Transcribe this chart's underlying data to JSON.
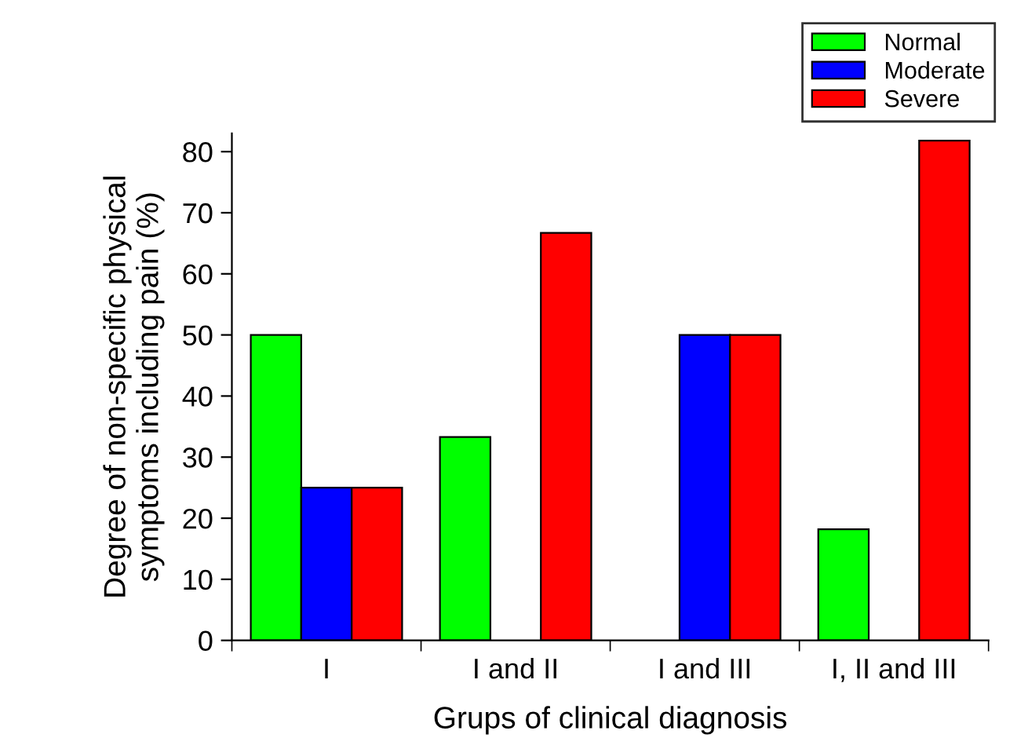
{
  "chart_data": {
    "type": "bar",
    "xlabel": "Grups of clinical diagnosis",
    "ylabel": "Degree of non-specific physical\nsymptoms including pain (%)",
    "categories": [
      "I",
      "I and II",
      "I and III",
      "I, II and III"
    ],
    "series": [
      {
        "name": "Normal",
        "color": "#00ff00",
        "values": [
          50,
          33.3,
          null,
          18.2
        ]
      },
      {
        "name": "Moderate",
        "color": "#0000ff",
        "values": [
          25,
          null,
          50,
          null
        ]
      },
      {
        "name": "Severe",
        "color": "#ff0000",
        "values": [
          25,
          66.7,
          50,
          81.8
        ]
      }
    ],
    "ylim": [
      0,
      83
    ],
    "yticks": [
      0,
      10,
      20,
      30,
      40,
      50,
      60,
      70,
      80
    ],
    "grid": false,
    "legend": "top right"
  }
}
